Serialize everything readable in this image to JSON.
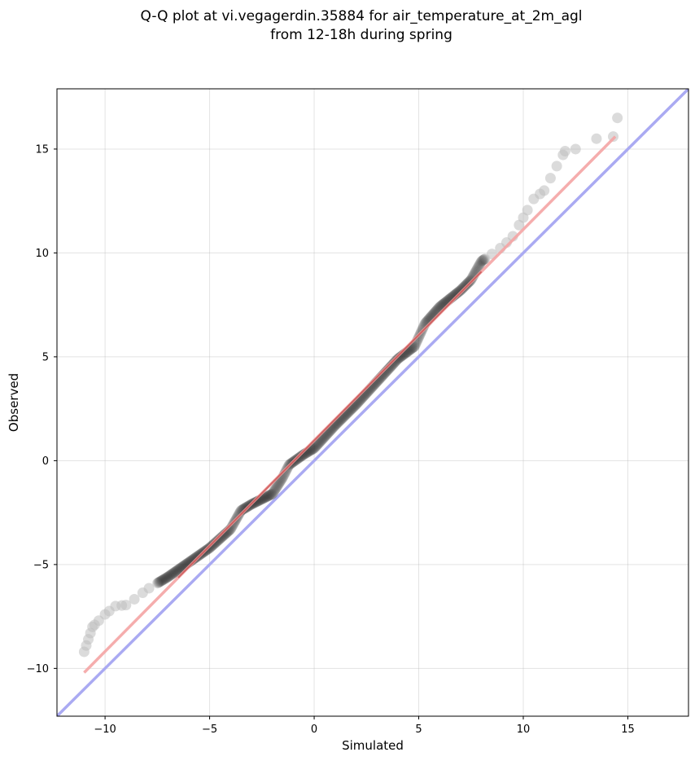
{
  "chart_data": {
    "type": "scatter",
    "title_line1": "Q-Q plot at vi.vegagerdin.35884 for air_temperature_at_2m_agl",
    "title_line2": "from 12-18h during spring",
    "xlabel": "Simulated",
    "ylabel": "Observed",
    "xlim": [
      -12.3,
      17.9
    ],
    "ylim": [
      -12.3,
      17.9
    ],
    "xticks": [
      -10,
      -5,
      0,
      5,
      10,
      15
    ],
    "yticks": [
      -10,
      -5,
      0,
      5,
      10,
      15
    ],
    "xtick_labels": [
      "−10",
      "−5",
      "0",
      "5",
      "10",
      "15"
    ],
    "ytick_labels": [
      "−10",
      "−5",
      "0",
      "5",
      "10",
      "15"
    ],
    "grid": true,
    "colors": {
      "points": "#222222",
      "tail_points": "#bdbdbd",
      "fit_line": "#f4a4a4",
      "fit_line_dark": "#b22222",
      "identity_line": "#aaaaf2"
    },
    "identity_line": {
      "name": "",
      "x": [
        -12.3,
        17.9
      ],
      "y": [
        -12.3,
        17.9
      ]
    },
    "fit_line": {
      "name": "",
      "x": [
        -11,
        14.4
      ],
      "y": [
        -10.2,
        15.6
      ]
    },
    "curve_anchors": [
      [
        -11.0,
        -9.2
      ],
      [
        -10.6,
        -8.0
      ],
      [
        -10.0,
        -7.4
      ],
      [
        -9.5,
        -7.0
      ],
      [
        -9.0,
        -6.95
      ],
      [
        -8.5,
        -6.6
      ],
      [
        -8.0,
        -6.2
      ],
      [
        -7.0,
        -5.6
      ],
      [
        -6.0,
        -4.9
      ],
      [
        -5.0,
        -4.2
      ],
      [
        -4.0,
        -3.3
      ],
      [
        -3.5,
        -2.4
      ],
      [
        -3.0,
        -2.1
      ],
      [
        -2.0,
        -1.6
      ],
      [
        -1.5,
        -0.8
      ],
      [
        -1.2,
        -0.2
      ],
      [
        -0.5,
        0.3
      ],
      [
        0.0,
        0.6
      ],
      [
        1.0,
        1.7
      ],
      [
        2.0,
        2.7
      ],
      [
        3.0,
        3.8
      ],
      [
        4.0,
        4.9
      ],
      [
        4.8,
        5.5
      ],
      [
        5.3,
        6.6
      ],
      [
        6.0,
        7.4
      ],
      [
        7.0,
        8.2
      ],
      [
        7.5,
        8.7
      ],
      [
        8.0,
        9.6
      ],
      [
        9.0,
        10.3
      ],
      [
        9.5,
        10.8
      ],
      [
        10.0,
        11.7
      ],
      [
        10.5,
        12.6
      ],
      [
        11.0,
        13.0
      ],
      [
        11.5,
        14.0
      ],
      [
        12.0,
        14.9
      ],
      [
        12.5,
        15.0
      ],
      [
        13.5,
        15.5
      ],
      [
        14.3,
        15.6
      ],
      [
        14.5,
        16.5
      ]
    ]
  }
}
